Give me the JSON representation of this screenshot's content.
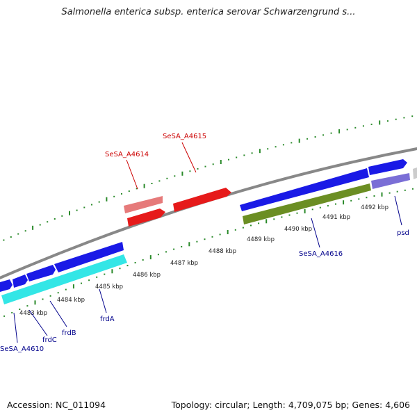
{
  "header": {
    "title": "Salmonella enterica subsp. enterica serovar Schwarzengrund s..."
  },
  "footer": {
    "accession": "Accession: NC_011094",
    "topology": "Topology: circular; Length: 4,709,075 bp; Genes: 4,606"
  },
  "colors": {
    "backbone": "#888888",
    "tick": "#2a8a2a",
    "gene_blue": "#1a1ae6",
    "gene_cyan": "#33e6e6",
    "gene_red": "#e61a1a",
    "gene_pink": "#e67a7a",
    "gene_olive": "#6b8e23",
    "gene_purple": "#7a6ed6",
    "label_blue": "#00008b",
    "label_red": "#cc0000"
  },
  "kbp_labels": [
    "4483 kbp",
    "4484 kbp",
    "4485 kbp",
    "4486 kbp",
    "4487 kbp",
    "4488 kbp",
    "4489 kbp",
    "4490 kbp",
    "4491 kbp",
    "4492 kbp"
  ],
  "gene_labels": {
    "sesa_a4615": "SeSA_A4615",
    "sesa_a4614": "SeSA_A4614",
    "sesa_a4616": "SeSA_A4616",
    "psd": "psd",
    "frda": "frdA",
    "frdb": "frdB",
    "frdc": "frdC",
    "sesa_a4610": "SeSA_A4610"
  }
}
